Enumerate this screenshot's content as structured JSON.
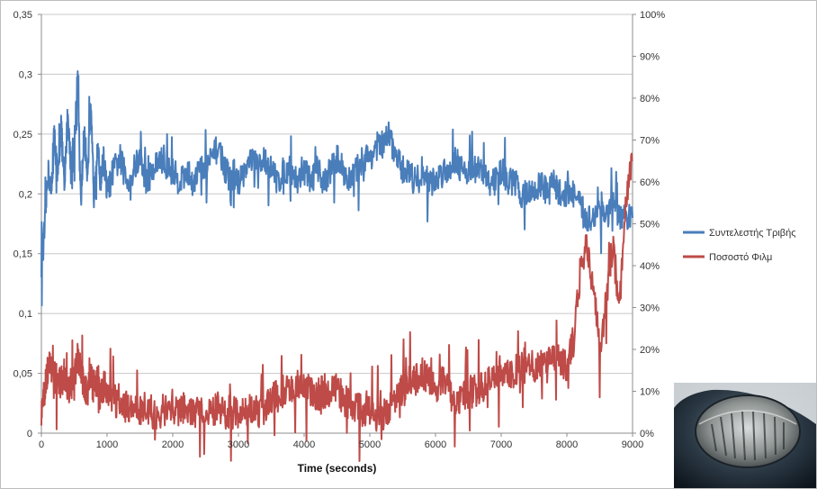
{
  "chart_data": {
    "type": "line",
    "xlabel": "Time (seconds)",
    "x_ticks": [
      "0",
      "1000",
      "2000",
      "3000",
      "4000",
      "5000",
      "6000",
      "7000",
      "8000",
      "9000"
    ],
    "xlim": [
      0,
      9000
    ],
    "y_left_ticks": [
      "0",
      "0,05",
      "0,1",
      "0,15",
      "0,2",
      "0,25",
      "0,3",
      "0,35"
    ],
    "ylim_left": [
      0,
      0.35
    ],
    "y_right_ticks": [
      "0%",
      "10%",
      "20%",
      "30%",
      "40%",
      "50%",
      "60%",
      "70%",
      "80%",
      "90%",
      "100%"
    ],
    "ylim_right": [
      0,
      100
    ],
    "grid": "horizontal",
    "legend_position": "right",
    "series": [
      {
        "name": "Συντελεστής Τριβής",
        "axis": "left",
        "color": "#4a7ebb",
        "x": [
          0,
          50,
          100,
          150,
          200,
          250,
          300,
          350,
          400,
          450,
          500,
          550,
          600,
          650,
          700,
          750,
          800,
          850,
          900,
          950,
          1000,
          1100,
          1200,
          1300,
          1400,
          1500,
          1600,
          1700,
          1800,
          1900,
          2000,
          2100,
          2200,
          2300,
          2400,
          2500,
          2600,
          2700,
          2800,
          2900,
          3000,
          3100,
          3200,
          3300,
          3400,
          3500,
          3600,
          3700,
          3800,
          3900,
          4000,
          4100,
          4200,
          4300,
          4400,
          4500,
          4600,
          4700,
          4800,
          4900,
          5000,
          5100,
          5200,
          5300,
          5400,
          5500,
          5600,
          5700,
          5800,
          5900,
          6000,
          6100,
          6200,
          6300,
          6400,
          6500,
          6600,
          6700,
          6800,
          6900,
          7000,
          7100,
          7200,
          7300,
          7400,
          7500,
          7600,
          7700,
          7800,
          7900,
          8000,
          8100,
          8200,
          8300,
          8400,
          8500,
          8600,
          8700,
          8800,
          8900,
          9000
        ],
        "values": [
          0.14,
          0.17,
          0.22,
          0.2,
          0.25,
          0.21,
          0.26,
          0.2,
          0.27,
          0.22,
          0.24,
          0.3,
          0.19,
          0.25,
          0.22,
          0.27,
          0.2,
          0.24,
          0.21,
          0.23,
          0.2,
          0.22,
          0.23,
          0.21,
          0.22,
          0.23,
          0.21,
          0.22,
          0.23,
          0.22,
          0.22,
          0.21,
          0.22,
          0.21,
          0.22,
          0.22,
          0.23,
          0.24,
          0.22,
          0.21,
          0.21,
          0.22,
          0.23,
          0.22,
          0.23,
          0.22,
          0.21,
          0.22,
          0.22,
          0.21,
          0.22,
          0.21,
          0.22,
          0.21,
          0.22,
          0.23,
          0.22,
          0.21,
          0.22,
          0.23,
          0.23,
          0.24,
          0.24,
          0.25,
          0.23,
          0.22,
          0.22,
          0.21,
          0.22,
          0.21,
          0.21,
          0.22,
          0.22,
          0.23,
          0.22,
          0.22,
          0.22,
          0.22,
          0.21,
          0.21,
          0.22,
          0.21,
          0.21,
          0.2,
          0.2,
          0.2,
          0.21,
          0.2,
          0.21,
          0.2,
          0.2,
          0.2,
          0.19,
          0.18,
          0.18,
          0.19,
          0.18,
          0.19,
          0.18,
          0.18,
          0.18
        ]
      },
      {
        "name": "Ποσοστό Φιλμ",
        "axis": "right",
        "color": "#be4b48",
        "x": [
          0,
          50,
          100,
          150,
          200,
          250,
          300,
          350,
          400,
          450,
          500,
          550,
          600,
          650,
          700,
          750,
          800,
          850,
          900,
          950,
          1000,
          1100,
          1200,
          1300,
          1400,
          1500,
          1600,
          1700,
          1800,
          1900,
          2000,
          2100,
          2200,
          2300,
          2400,
          2500,
          2600,
          2700,
          2800,
          2900,
          3000,
          3100,
          3200,
          3300,
          3400,
          3500,
          3600,
          3700,
          3800,
          3900,
          4000,
          4100,
          4200,
          4300,
          4400,
          4500,
          4600,
          4700,
          4800,
          4900,
          5000,
          5100,
          5200,
          5300,
          5400,
          5500,
          5600,
          5700,
          5800,
          5900,
          6000,
          6100,
          6200,
          6300,
          6400,
          6500,
          6600,
          6700,
          6800,
          6900,
          7000,
          7100,
          7200,
          7300,
          7400,
          7500,
          7600,
          7700,
          7800,
          7900,
          8000,
          8100,
          8200,
          8300,
          8400,
          8500,
          8600,
          8700,
          8800,
          8900,
          9000
        ],
        "values": [
          5,
          10,
          16,
          15,
          13,
          14,
          12,
          14,
          10,
          12,
          13,
          19,
          14,
          12,
          10,
          13,
          11,
          12,
          9,
          11,
          10,
          8,
          7,
          6,
          6,
          5,
          6,
          5,
          5,
          5,
          6,
          5,
          6,
          5,
          5,
          6,
          5,
          6,
          5,
          5,
          5,
          5,
          6,
          5,
          6,
          8,
          9,
          10,
          10,
          11,
          11,
          10,
          9,
          10,
          9,
          11,
          8,
          7,
          6,
          5,
          5,
          4,
          4,
          6,
          9,
          10,
          12,
          13,
          14,
          12,
          11,
          13,
          10,
          8,
          9,
          10,
          10,
          11,
          12,
          13,
          13,
          14,
          15,
          16,
          17,
          16,
          17,
          16,
          18,
          17,
          16,
          22,
          38,
          45,
          35,
          20,
          32,
          45,
          30,
          55,
          65
        ]
      }
    ]
  },
  "photo": {
    "icon": "tribometer-wear-scar-micrograph"
  }
}
